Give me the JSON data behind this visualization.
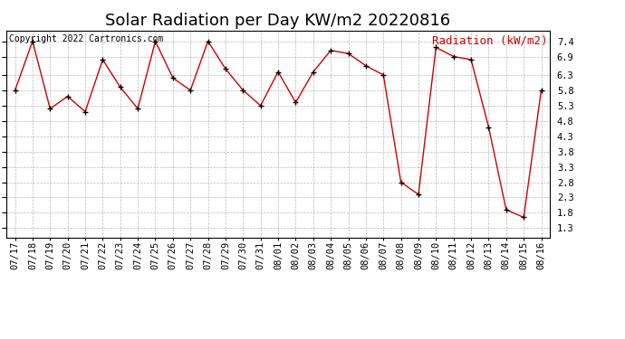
{
  "title": "Solar Radiation per Day KW/m2 20220816",
  "copyright": "Copyright 2022 Cartronics.com",
  "legend_label": "Radiation (kW/m2)",
  "dates": [
    "07/17",
    "07/18",
    "07/19",
    "07/20",
    "07/21",
    "07/22",
    "07/23",
    "07/24",
    "07/25",
    "07/26",
    "07/27",
    "07/28",
    "07/29",
    "07/30",
    "07/31",
    "08/01",
    "08/02",
    "08/03",
    "08/04",
    "08/05",
    "08/06",
    "08/07",
    "08/08",
    "08/09",
    "08/10",
    "08/11",
    "08/12",
    "08/13",
    "08/14",
    "08/15",
    "08/16"
  ],
  "values": [
    5.8,
    7.4,
    5.2,
    5.6,
    5.1,
    6.8,
    5.9,
    5.2,
    7.4,
    6.2,
    5.8,
    7.4,
    6.5,
    5.8,
    5.3,
    6.4,
    5.4,
    6.4,
    7.1,
    7.0,
    6.6,
    6.3,
    2.8,
    2.4,
    7.2,
    6.9,
    6.8,
    4.6,
    1.9,
    1.65,
    5.8
  ],
  "line_color": "#cc0000",
  "marker_color": "#000000",
  "grid_color": "#b0b0b0",
  "background_color": "#ffffff",
  "legend_color": "#cc0000",
  "copyright_color": "#000000",
  "ylim": [
    1.0,
    7.75
  ],
  "yticks": [
    1.3,
    1.8,
    2.3,
    2.8,
    3.3,
    3.8,
    4.3,
    4.8,
    5.3,
    5.8,
    6.3,
    6.9,
    7.4
  ],
  "title_fontsize": 13,
  "legend_fontsize": 9,
  "copyright_fontsize": 7,
  "tick_fontsize": 7.5
}
